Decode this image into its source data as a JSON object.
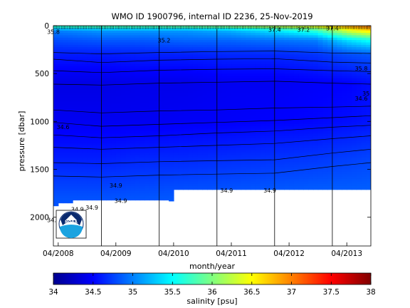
{
  "chart_data": {
    "type": "heatmap",
    "title": "WMO ID 1900796, internal ID 2236, 25-Nov-2019",
    "xlabel": "month/year",
    "ylabel": "pressure [dbar]",
    "x_ticks": [
      "04/2008",
      "04/2009",
      "04/2010",
      "04/2011",
      "04/2012",
      "04/2013"
    ],
    "y_ticks": [
      0,
      500,
      1000,
      1500,
      2000
    ],
    "ylim": [
      2300,
      0
    ],
    "y_reversed": true,
    "colorbar": {
      "label": "salinity [psu]",
      "ticks": [
        34,
        34.5,
        35,
        35.5,
        36,
        36.5,
        37,
        37.5,
        38
      ],
      "range": [
        34,
        38
      ],
      "colormap": "jet"
    },
    "max_depth_profile": [
      {
        "date": "2008-03",
        "depth": 1880
      },
      {
        "date": "2008-04",
        "depth": 1850
      },
      {
        "date": "2008-07",
        "depth": 1820
      },
      {
        "date": "2010-03",
        "depth": 1830
      },
      {
        "date": "2010-04",
        "depth": 1710
      },
      {
        "date": "2013-09",
        "depth": 1710
      }
    ],
    "salinity_layers": [
      {
        "depth": 0,
        "values": [
          35.8,
          35.9,
          35.9,
          36.0,
          36.1,
          36.3,
          36.5,
          36.9,
          37.1
        ]
      },
      {
        "depth": 50,
        "values": [
          35.0,
          35.1,
          35.1,
          35.1,
          35.2,
          35.4,
          35.7,
          36.4,
          36.7
        ]
      },
      {
        "depth": 150,
        "values": [
          34.8,
          34.85,
          34.85,
          34.9,
          34.9,
          34.95,
          35.0,
          35.4,
          35.6
        ]
      },
      {
        "depth": 300,
        "values": [
          34.6,
          34.6,
          34.62,
          34.62,
          34.65,
          34.65,
          34.7,
          34.8,
          34.85
        ]
      },
      {
        "depth": 600,
        "values": [
          34.4,
          34.4,
          34.42,
          34.42,
          34.45,
          34.45,
          34.48,
          34.5,
          34.55
        ]
      },
      {
        "depth": 1000,
        "values": [
          34.45,
          34.45,
          34.45,
          34.47,
          34.48,
          34.5,
          34.52,
          34.55,
          34.58
        ]
      },
      {
        "depth": 1400,
        "values": [
          34.62,
          34.62,
          34.65,
          34.66,
          34.68,
          34.7,
          34.72,
          34.75,
          34.78
        ]
      },
      {
        "depth": 1800,
        "values": [
          34.82,
          34.82,
          34.83,
          34.85,
          34.86,
          34.88,
          34.9,
          34.9,
          34.9
        ]
      }
    ],
    "layer_dates": [
      "2008-03",
      "2009-01",
      "2009-09",
      "2010-06",
      "2011-03",
      "2011-12",
      "2012-09",
      "2013-04",
      "2013-09"
    ],
    "contour_labels": [
      {
        "text": "35.8",
        "date": "2008-03",
        "depth": 85
      },
      {
        "text": "35.2",
        "date": "2010-02",
        "depth": 175
      },
      {
        "text": "37.4",
        "date": "2012-01",
        "depth": 65
      },
      {
        "text": "37.2",
        "date": "2012-07",
        "depth": 65
      },
      {
        "text": "37.4",
        "date": "2013-01",
        "depth": 50
      },
      {
        "text": "35.8",
        "date": "2013-07",
        "depth": 470
      },
      {
        "text": "35",
        "date": "2013-08",
        "depth": 730
      },
      {
        "text": "34.6",
        "date": "2013-07",
        "depth": 780
      },
      {
        "text": "34.6",
        "date": "2008-05",
        "depth": 1080
      },
      {
        "text": "34.9",
        "date": "2009-04",
        "depth": 1690
      },
      {
        "text": "34.9",
        "date": "2009-05",
        "depth": 1850
      },
      {
        "text": "34.9",
        "date": "2011-03",
        "depth": 1740
      },
      {
        "text": "34.9",
        "date": "2011-12",
        "depth": 1740
      },
      {
        "text": "34.9",
        "date": "2008-03",
        "depth": 2050
      },
      {
        "text": "34.9",
        "date": "2008-08",
        "depth": 1940
      },
      {
        "text": "34.9",
        "date": "2008-11",
        "depth": 1920
      }
    ],
    "contour_levels": [
      {
        "level": "35.0",
        "points": [
          [
            "2008-03",
            280
          ],
          [
            "2009-01",
            295
          ],
          [
            "2010-01",
            280
          ],
          [
            "2011-01",
            270
          ],
          [
            "2012-01",
            265
          ],
          [
            "2013-01",
            285
          ],
          [
            "2013-09",
            290
          ]
        ]
      },
      {
        "level": "34.6",
        "points": [
          [
            "2008-03",
            350
          ],
          [
            "2009-01",
            385
          ],
          [
            "2010-01",
            360
          ],
          [
            "2011-01",
            350
          ],
          [
            "2012-01",
            345
          ],
          [
            "2013-01",
            380
          ],
          [
            "2013-09",
            390
          ]
        ]
      },
      {
        "level": "34.55",
        "points": [
          [
            "2008-03",
            470
          ],
          [
            "2009-01",
            490
          ],
          [
            "2010-01",
            465
          ],
          [
            "2011-01",
            455
          ],
          [
            "2012-01",
            450
          ],
          [
            "2013-01",
            470
          ],
          [
            "2013-09",
            480
          ]
        ]
      },
      {
        "level": "34.5",
        "points": [
          [
            "2008-03",
            610
          ],
          [
            "2009-01",
            620
          ],
          [
            "2010-01",
            600
          ],
          [
            "2011-01",
            590
          ],
          [
            "2012-01",
            580
          ],
          [
            "2013-01",
            600
          ],
          [
            "2013-09",
            610
          ]
        ]
      },
      {
        "level": "34.45",
        "points": [
          [
            "2008-03",
            880
          ],
          [
            "2009-01",
            910
          ],
          [
            "2010-01",
            890
          ],
          [
            "2011-01",
            880
          ],
          [
            "2012-01",
            860
          ],
          [
            "2013-01",
            850
          ],
          [
            "2013-09",
            840
          ]
        ]
      },
      {
        "level": "34.5b",
        "points": [
          [
            "2008-03",
            1010
          ],
          [
            "2009-01",
            1050
          ],
          [
            "2010-01",
            1030
          ],
          [
            "2011-01",
            1010
          ],
          [
            "2012-01",
            990
          ],
          [
            "2013-01",
            960
          ],
          [
            "2013-09",
            940
          ]
        ]
      },
      {
        "level": "34.6b",
        "points": [
          [
            "2008-03",
            1140
          ],
          [
            "2009-01",
            1170
          ],
          [
            "2010-01",
            1150
          ],
          [
            "2011-01",
            1120
          ],
          [
            "2012-01",
            1100
          ],
          [
            "2013-01",
            1060
          ],
          [
            "2013-09",
            1040
          ]
        ]
      },
      {
        "level": "34.7",
        "points": [
          [
            "2008-03",
            1270
          ],
          [
            "2009-01",
            1290
          ],
          [
            "2010-01",
            1270
          ],
          [
            "2011-01",
            1250
          ],
          [
            "2012-01",
            1230
          ],
          [
            "2013-01",
            1180
          ],
          [
            "2013-09",
            1150
          ]
        ]
      },
      {
        "level": "34.8",
        "points": [
          [
            "2008-03",
            1430
          ],
          [
            "2009-01",
            1440
          ],
          [
            "2010-01",
            1420
          ],
          [
            "2011-01",
            1410
          ],
          [
            "2012-01",
            1400
          ],
          [
            "2013-01",
            1330
          ],
          [
            "2013-09",
            1290
          ]
        ]
      },
      {
        "level": "34.85",
        "points": [
          [
            "2008-03",
            1570
          ],
          [
            "2009-01",
            1580
          ],
          [
            "2010-01",
            1560
          ],
          [
            "2011-01",
            1550
          ],
          [
            "2012-01",
            1540
          ],
          [
            "2013-01",
            1470
          ],
          [
            "2013-09",
            1430
          ]
        ]
      }
    ]
  }
}
